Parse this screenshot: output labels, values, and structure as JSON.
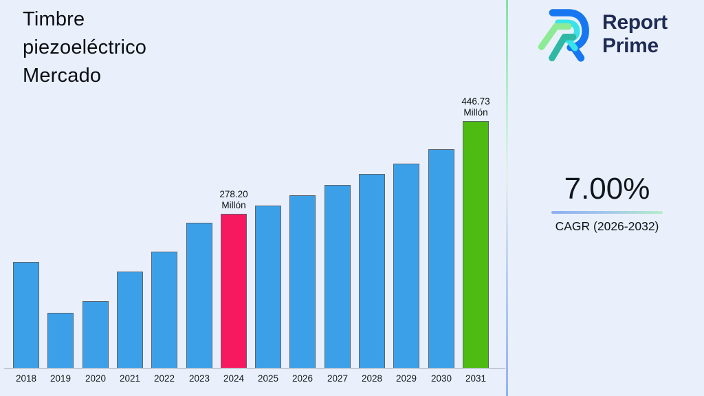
{
  "page": {
    "background": "#E9F0FB"
  },
  "header": {
    "title": "Timbre piezoeléctrico Mercado",
    "title_lines": [
      "Timbre",
      "piezoeléctrico",
      "Mercado"
    ]
  },
  "brand": {
    "line1": "Report",
    "line2": "Prime",
    "text_color": "#1F2B54",
    "logo_colors": {
      "blue": "#1677F0",
      "cyan": "#39E3E8",
      "green": "#8DEB96",
      "teal": "#2FB9A4"
    }
  },
  "kpi": {
    "value": "7.00%",
    "caption": "CAGR (2026-2032)"
  },
  "chart_data": {
    "type": "bar",
    "title": "Timbre piezoeléctrico Mercado",
    "unit": "Millón",
    "categories": [
      "2018",
      "2019",
      "2020",
      "2021",
      "2022",
      "2023",
      "2024",
      "2025",
      "2026",
      "2027",
      "2028",
      "2029",
      "2030",
      "2031"
    ],
    "values": [
      192,
      99,
      121,
      174,
      210,
      263,
      278.2,
      294,
      312,
      331,
      351,
      370,
      396,
      446.73
    ],
    "ylim": [
      0,
      446.73
    ],
    "grid": false,
    "legend": false,
    "xlabel": "",
    "ylabel": "",
    "bar_colors": {
      "default": "#3BA0E8",
      "2024": "#F6195F",
      "2031": "#4DBB12"
    },
    "annotations": [
      {
        "category": "2024",
        "value_text": "278.20",
        "unit_text": "Millón"
      },
      {
        "category": "2031",
        "value_text": "446.73",
        "unit_text": "Millón"
      }
    ]
  },
  "colors": {
    "background": "#E9F0FB",
    "bar_blue": "#3BA0E8",
    "bar_pink": "#F6195F",
    "bar_green": "#4DBB12",
    "bar_border": "#5A6370",
    "divider_top": "#7FE3A6",
    "divider_bottom": "#8FB2F4",
    "underline_left": "#8FAEF1",
    "underline_right": "#B7EDCA",
    "logo_navy": "#1F2B54"
  }
}
